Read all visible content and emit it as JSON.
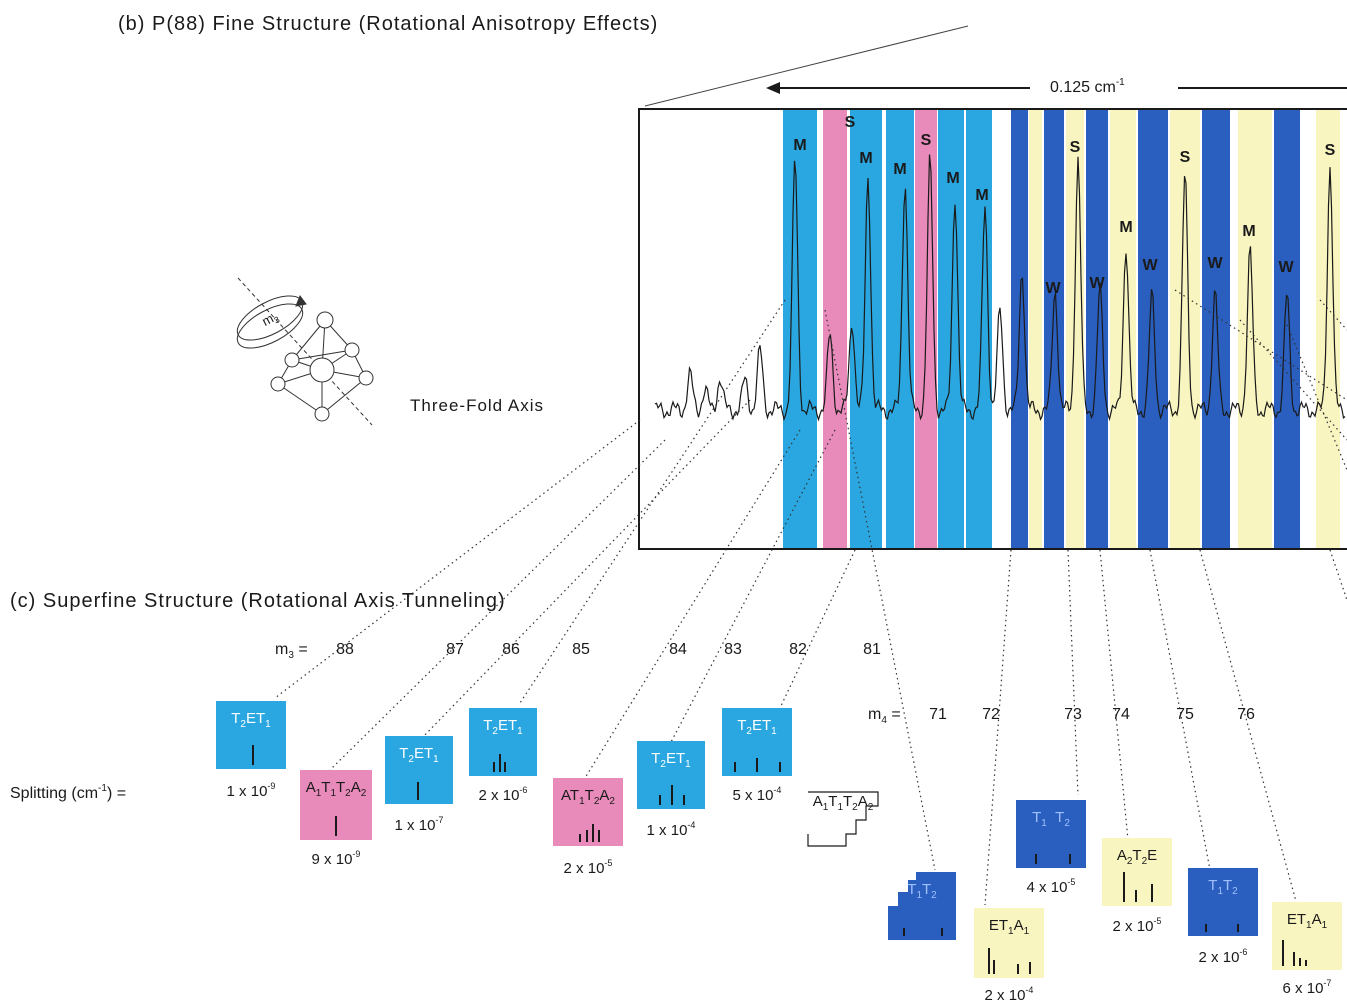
{
  "section_b": {
    "title": "(b) P(88)  Fine Structure (Rotational Anisotropy Effects)"
  },
  "scale_label": "0.125 cm",
  "scale_label_sup": "-1",
  "axis_label": "Three-Fold Axis",
  "molecule": {
    "rotation_label": "m",
    "rotation_sub": "3"
  },
  "section_c": {
    "title": "(c) Superfine Structure (Rotational Axis Tunneling)"
  },
  "m3_label": "m",
  "m3_sub": "3",
  "m4_label": "m",
  "m4_sub": "4",
  "splitting_label": "Splitting (cm",
  "splitting_label_end": ") =",
  "m3_values": [
    "88",
    "87",
    "86",
    "85",
    "84",
    "83",
    "82",
    "81"
  ],
  "m4_values": [
    "71",
    "72",
    "73",
    "74",
    "75",
    "76"
  ],
  "colors": {
    "medium_blue": "#2aa7e0",
    "dark_blue": "#2a5fbf",
    "pink": "#e88aba",
    "cream": "#f8f5c0"
  },
  "band_letters": [
    "M",
    "S",
    "M",
    "M",
    "S",
    "M",
    "M",
    "W",
    "W",
    "S",
    "M",
    "W",
    "S",
    "W",
    "M",
    "W",
    "S"
  ],
  "boxes": [
    {
      "label": "T2ET1",
      "value": "1 x 10",
      "exp": "-9",
      "color": "medium_blue"
    },
    {
      "label": "A1T1T2A2",
      "value": "9 x 10",
      "exp": "-9",
      "color": "pink"
    },
    {
      "label": "T2ET1",
      "value": "1 x 10",
      "exp": "-7",
      "color": "medium_blue"
    },
    {
      "label": "T2ET1",
      "value": "2 x 10",
      "exp": "-6",
      "color": "medium_blue"
    },
    {
      "label": "AT1T2A2",
      "value": "2 x 10",
      "exp": "-5",
      "color": "pink"
    },
    {
      "label": "T2ET1",
      "value": "1 x 10",
      "exp": "-4",
      "color": "medium_blue"
    },
    {
      "label": "T2ET1",
      "value": "5 x 10",
      "exp": "-4",
      "color": "medium_blue"
    },
    {
      "label": "A1T1T2A2",
      "value": "",
      "exp": "",
      "color": "white"
    },
    {
      "label": "T1T2",
      "value": "",
      "exp": "",
      "color": "dark_blue"
    },
    {
      "label": "ET1A1",
      "value": "2 x 10",
      "exp": "-4",
      "color": "cream"
    },
    {
      "label": "T1  T2",
      "value": "4 x 10",
      "exp": "-5",
      "color": "dark_blue"
    },
    {
      "label": "A2T2E",
      "value": "2 x 10",
      "exp": "-5",
      "color": "cream"
    },
    {
      "label": "T1T2",
      "value": "2 x 10",
      "exp": "-6",
      "color": "dark_blue"
    },
    {
      "label": "ET1A1",
      "value": "6 x 10",
      "exp": "-7",
      "color": "cream"
    }
  ]
}
